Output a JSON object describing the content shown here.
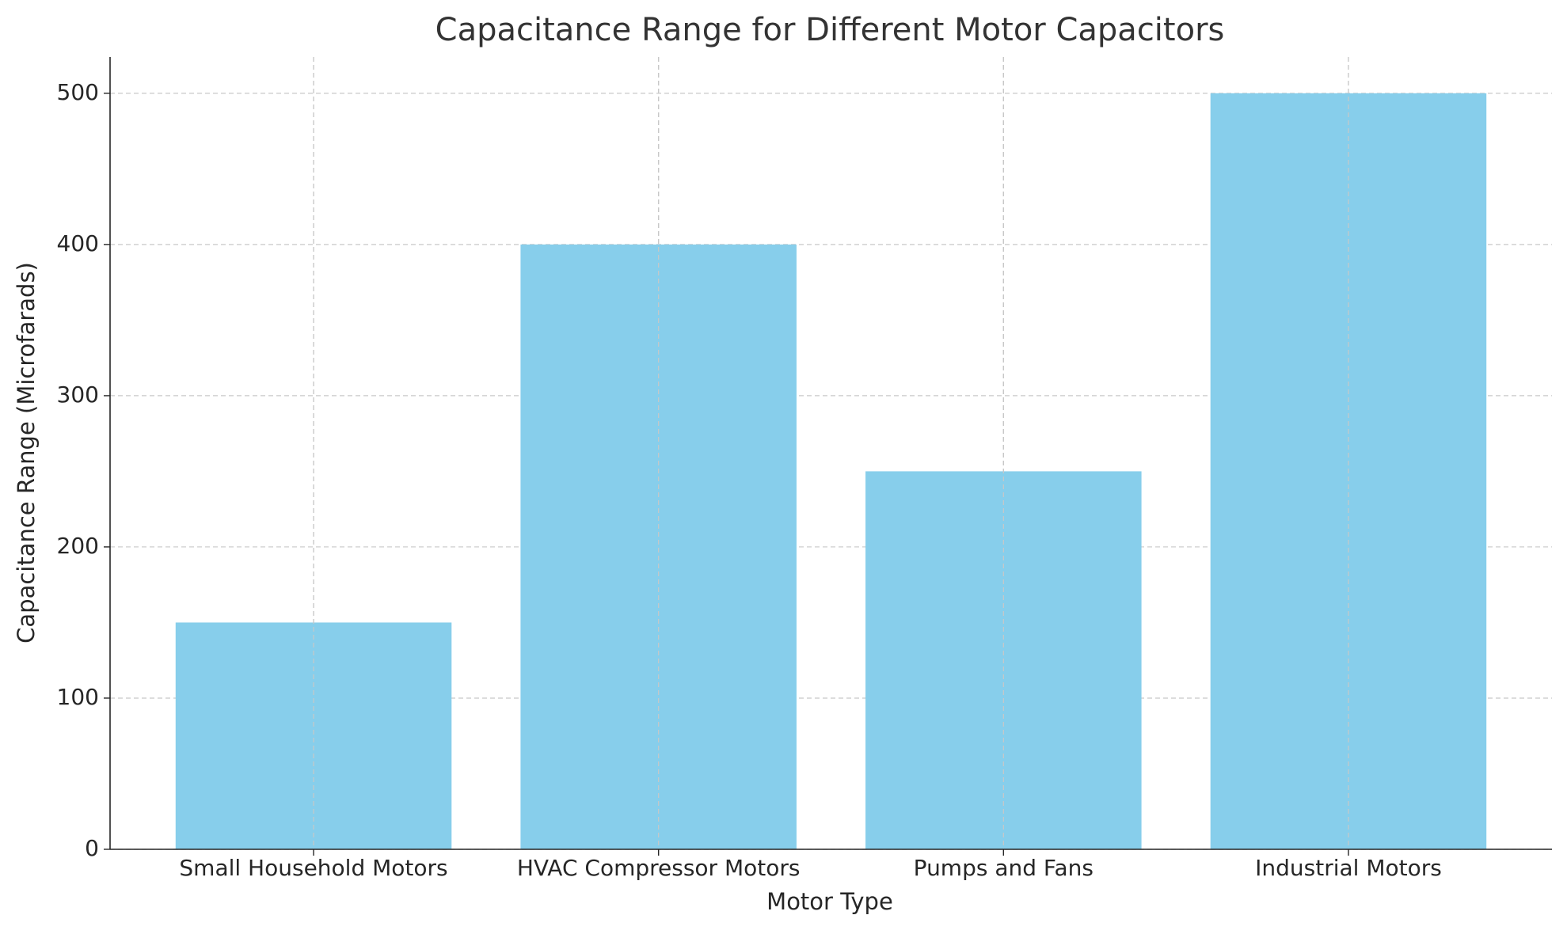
{
  "chart_data": {
    "type": "bar",
    "title": "Capacitance Range for Different Motor Capacitors",
    "x_label": "Motor Type",
    "y_label": "Capacitance Range (Microfarads)",
    "categories": [
      "Small Household Motors",
      "HVAC Compressor Motors",
      "Pumps and Fans",
      "Industrial Motors"
    ],
    "values": [
      150,
      400,
      250,
      500
    ],
    "color": "#87ceeb",
    "ylim": [
      0,
      524
    ],
    "yticks": [
      0,
      100,
      200,
      300,
      400,
      500
    ],
    "grid": true
  }
}
